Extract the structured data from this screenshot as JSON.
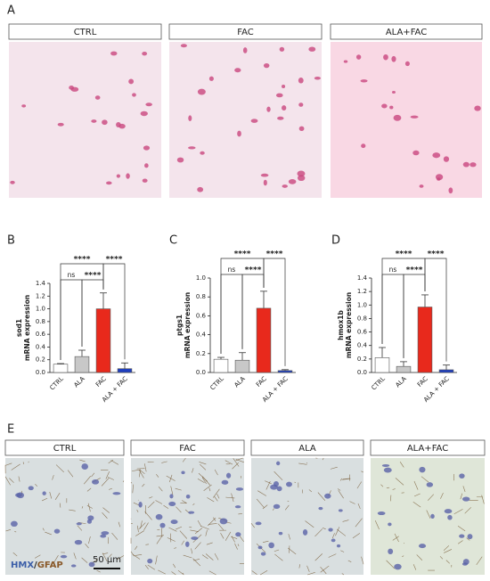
{
  "figure": {
    "panel_a": {
      "label": "A",
      "headers": [
        "CTRL",
        "FAC",
        "ALA+FAC"
      ]
    },
    "panel_b": {
      "label": "B"
    },
    "panel_c": {
      "label": "C"
    },
    "panel_d": {
      "label": "D"
    },
    "panel_e": {
      "label": "E",
      "headers": [
        "CTRL",
        "FAC",
        "ALA",
        "ALA+FAC"
      ],
      "stain": {
        "a": "HMX",
        "sep": "/",
        "b": "GFAP"
      },
      "scale": "50 µm"
    }
  },
  "chart_data": [
    {
      "type": "bar",
      "ylabel": "sod1",
      "ylabel_sub": "mRNA expression",
      "categories": [
        "CTRL",
        "ALA",
        "FAC",
        "ALA + FAC"
      ],
      "values": [
        0.13,
        0.25,
        1.0,
        0.06
      ],
      "errors": [
        0.01,
        0.1,
        0.25,
        0.09
      ],
      "colors": [
        "#ffffff",
        "#c8c8c8",
        "#e8291c",
        "#1f3fbf"
      ],
      "ylim": [
        0,
        1.4
      ],
      "yticks": [
        {
          "value": 0,
          "label": "0.0"
        },
        0.2,
        0.4,
        0.6,
        0.8,
        {
          "value": 1,
          "label": "1.0"
        },
        1.2,
        1.4
      ],
      "annotations": [
        {
          "label": "ns",
          "groups": [
            "CTRL",
            "ALA"
          ]
        },
        {
          "label": "****",
          "groups": [
            "ALA",
            "FAC"
          ]
        },
        {
          "label": "****",
          "groups": [
            "CTRL",
            "FAC"
          ]
        },
        {
          "label": "****",
          "groups": [
            "FAC",
            "ALA + FAC"
          ]
        }
      ]
    },
    {
      "type": "bar",
      "ylabel": "ptgs1",
      "ylabel_sub": "mRNA expression",
      "categories": [
        "CTRL",
        "ALA",
        "FAC",
        "ALA + FAC"
      ],
      "values": [
        0.14,
        0.13,
        0.68,
        0.02
      ],
      "errors": [
        0.02,
        0.08,
        0.18,
        0.01
      ],
      "colors": [
        "#ffffff",
        "#c8c8c8",
        "#e8291c",
        "#1f3fbf"
      ],
      "ylim": [
        0,
        1.0
      ],
      "yticks": [
        {
          "value": 0,
          "label": "0.0"
        },
        0.2,
        0.4,
        0.6,
        0.8,
        {
          "value": 1,
          "label": "1.0"
        }
      ],
      "annotations": [
        {
          "label": "ns",
          "groups": [
            "CTRL",
            "ALA"
          ]
        },
        {
          "label": "****",
          "groups": [
            "ALA",
            "FAC"
          ]
        },
        {
          "label": "****",
          "groups": [
            "CTRL",
            "FAC"
          ]
        },
        {
          "label": "****",
          "groups": [
            "FAC",
            "ALA + FAC"
          ]
        }
      ]
    },
    {
      "type": "bar",
      "ylabel": "hmox1b",
      "ylabel_sub": "mRNA expression",
      "categories": [
        "CTRL",
        "ALA",
        "FAC",
        "ALA + FAC"
      ],
      "values": [
        0.22,
        0.09,
        0.97,
        0.04
      ],
      "errors": [
        0.15,
        0.07,
        0.18,
        0.07
      ],
      "colors": [
        "#ffffff",
        "#c8c8c8",
        "#e8291c",
        "#1f3fbf"
      ],
      "ylim": [
        0,
        1.4
      ],
      "yticks": [
        {
          "value": 0,
          "label": "0.0"
        },
        0.2,
        0.4,
        0.6,
        0.8,
        {
          "value": 1,
          "label": "1.0"
        },
        1.2,
        1.4
      ],
      "annotations": [
        {
          "label": "ns",
          "groups": [
            "CTRL",
            "ALA"
          ]
        },
        {
          "label": "****",
          "groups": [
            "ALA",
            "FAC"
          ]
        },
        {
          "label": "****",
          "groups": [
            "CTRL",
            "FAC"
          ]
        },
        {
          "label": "****",
          "groups": [
            "FAC",
            "ALA + FAC"
          ]
        }
      ]
    }
  ]
}
